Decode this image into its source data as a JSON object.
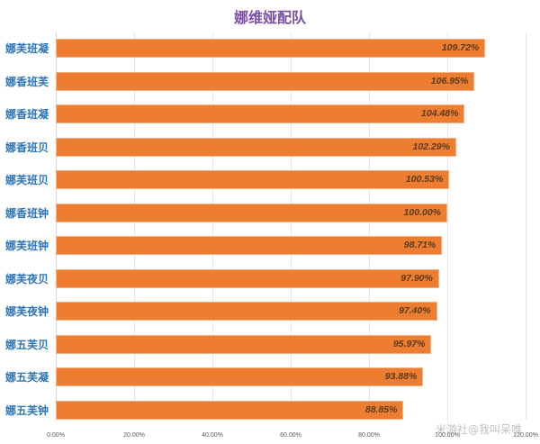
{
  "chart_data": {
    "type": "bar",
    "orientation": "horizontal",
    "title": "娜维娅配队",
    "xlabel": "",
    "ylabel": "",
    "xlim": [
      0,
      120
    ],
    "x_ticks": [
      "0.00%",
      "20.00%",
      "40.00%",
      "60.00%",
      "80.00%",
      "100.00%",
      "120.00%"
    ],
    "grid": true,
    "legend": null,
    "categories": [
      "娜芙班凝",
      "娜香班芙",
      "娜香班凝",
      "娜香班贝",
      "娜芙班贝",
      "娜香班钟",
      "娜芙班钟",
      "娜芙夜贝",
      "娜芙夜钟",
      "娜五芙贝",
      "娜五芙凝",
      "娜五芙钟"
    ],
    "values": [
      109.72,
      106.95,
      104.48,
      102.29,
      100.53,
      100.0,
      98.71,
      97.9,
      97.4,
      95.97,
      93.88,
      88.85
    ],
    "value_labels": [
      "109.72%",
      "106.95%",
      "104.48%",
      "102.29%",
      "100.53%",
      "100.00%",
      "98.71%",
      "97.90%",
      "97.40%",
      "95.97%",
      "93.88%",
      "88.85%"
    ],
    "colors": {
      "bar": "#ed7d31",
      "category_label": "#2e75b6",
      "title": "#7a4fa8",
      "value_label": "#5a3a1e"
    }
  },
  "watermark": "米游社@我叫呆唯"
}
